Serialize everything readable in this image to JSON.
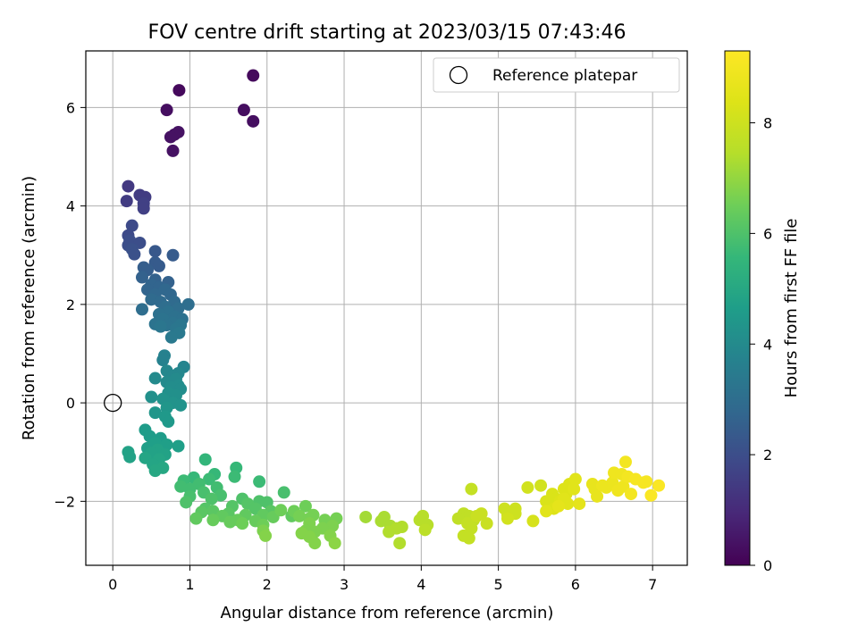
{
  "chart_data": {
    "type": "scatter",
    "title": "FOV centre drift starting at 2023/03/15 07:43:46",
    "xlabel": "Angular distance from reference (arcmin)",
    "ylabel": "Rotation from reference (arcmin)",
    "xlim": [
      -0.35,
      7.45
    ],
    "ylim": [
      -3.3,
      7.15
    ],
    "xticks": [
      0,
      1,
      2,
      3,
      4,
      5,
      6,
      7
    ],
    "yticks": [
      -2,
      0,
      2,
      4,
      6
    ],
    "grid": true,
    "legend": {
      "placement": "top-right",
      "entries": [
        "Reference platepar"
      ]
    },
    "reference_point": {
      "x": 0,
      "y": 0
    },
    "colorbar": {
      "label": "Hours from first FF file",
      "colormap": "viridis",
      "range": [
        0,
        9.3
      ],
      "ticks": [
        0,
        2,
        4,
        6,
        8
      ]
    },
    "points": [
      {
        "x": 0.86,
        "y": 6.35,
        "c": 0.2
      },
      {
        "x": 1.82,
        "y": 6.65,
        "c": 0.2
      },
      {
        "x": 0.7,
        "y": 5.95,
        "c": 0.3
      },
      {
        "x": 1.7,
        "y": 5.95,
        "c": 0.3
      },
      {
        "x": 1.82,
        "y": 5.72,
        "c": 0.3
      },
      {
        "x": 0.85,
        "y": 5.5,
        "c": 0.4
      },
      {
        "x": 0.8,
        "y": 5.45,
        "c": 0.4
      },
      {
        "x": 0.75,
        "y": 5.4,
        "c": 0.4
      },
      {
        "x": 0.78,
        "y": 5.12,
        "c": 0.4
      },
      {
        "x": 0.2,
        "y": 4.4,
        "c": 1.4
      },
      {
        "x": 0.35,
        "y": 4.22,
        "c": 1.5
      },
      {
        "x": 0.42,
        "y": 4.18,
        "c": 1.5
      },
      {
        "x": 0.18,
        "y": 4.1,
        "c": 1.5
      },
      {
        "x": 0.4,
        "y": 4.05,
        "c": 1.6
      },
      {
        "x": 0.4,
        "y": 3.95,
        "c": 1.6
      },
      {
        "x": 0.25,
        "y": 3.6,
        "c": 1.9
      },
      {
        "x": 0.2,
        "y": 3.4,
        "c": 1.9
      },
      {
        "x": 0.22,
        "y": 3.3,
        "c": 2.0
      },
      {
        "x": 0.35,
        "y": 3.25,
        "c": 2.0
      },
      {
        "x": 0.2,
        "y": 3.2,
        "c": 2.0
      },
      {
        "x": 0.25,
        "y": 3.12,
        "c": 2.1
      },
      {
        "x": 0.28,
        "y": 3.02,
        "c": 2.1
      },
      {
        "x": 0.55,
        "y": 3.08,
        "c": 2.3
      },
      {
        "x": 0.78,
        "y": 3.0,
        "c": 2.4
      },
      {
        "x": 0.55,
        "y": 2.85,
        "c": 2.4
      },
      {
        "x": 0.6,
        "y": 2.78,
        "c": 2.4
      },
      {
        "x": 0.4,
        "y": 2.75,
        "c": 2.5
      },
      {
        "x": 0.45,
        "y": 2.7,
        "c": 2.5
      },
      {
        "x": 0.38,
        "y": 2.55,
        "c": 2.6
      },
      {
        "x": 0.55,
        "y": 2.5,
        "c": 2.6
      },
      {
        "x": 0.72,
        "y": 2.45,
        "c": 2.6
      },
      {
        "x": 0.5,
        "y": 2.4,
        "c": 2.7
      },
      {
        "x": 0.6,
        "y": 2.35,
        "c": 2.7
      },
      {
        "x": 0.45,
        "y": 2.3,
        "c": 2.7
      },
      {
        "x": 0.68,
        "y": 2.3,
        "c": 2.8
      },
      {
        "x": 0.55,
        "y": 2.2,
        "c": 2.8
      },
      {
        "x": 0.75,
        "y": 2.2,
        "c": 2.8
      },
      {
        "x": 0.5,
        "y": 2.1,
        "c": 2.9
      },
      {
        "x": 0.62,
        "y": 2.05,
        "c": 2.9
      },
      {
        "x": 0.8,
        "y": 2.05,
        "c": 2.9
      },
      {
        "x": 0.98,
        "y": 2.0,
        "c": 3.0
      },
      {
        "x": 0.68,
        "y": 1.95,
        "c": 3.0
      },
      {
        "x": 0.85,
        "y": 1.92,
        "c": 3.0
      },
      {
        "x": 0.38,
        "y": 1.9,
        "c": 3.0
      },
      {
        "x": 0.72,
        "y": 1.85,
        "c": 3.1
      },
      {
        "x": 0.6,
        "y": 1.8,
        "c": 3.1
      },
      {
        "x": 0.8,
        "y": 1.75,
        "c": 3.1
      },
      {
        "x": 0.9,
        "y": 1.7,
        "c": 3.1
      },
      {
        "x": 0.65,
        "y": 1.7,
        "c": 3.2
      },
      {
        "x": 0.78,
        "y": 1.62,
        "c": 3.2
      },
      {
        "x": 0.55,
        "y": 1.6,
        "c": 3.2
      },
      {
        "x": 0.7,
        "y": 1.58,
        "c": 3.2
      },
      {
        "x": 0.88,
        "y": 1.58,
        "c": 3.3
      },
      {
        "x": 0.62,
        "y": 1.55,
        "c": 3.3
      },
      {
        "x": 0.82,
        "y": 1.5,
        "c": 3.3
      },
      {
        "x": 0.86,
        "y": 1.42,
        "c": 3.4
      },
      {
        "x": 0.76,
        "y": 1.33,
        "c": 3.4
      },
      {
        "x": 0.67,
        "y": 0.96,
        "c": 3.7
      },
      {
        "x": 0.65,
        "y": 0.87,
        "c": 3.7
      },
      {
        "x": 0.92,
        "y": 0.73,
        "c": 3.8
      },
      {
        "x": 0.7,
        "y": 0.65,
        "c": 3.9
      },
      {
        "x": 0.85,
        "y": 0.6,
        "c": 3.9
      },
      {
        "x": 0.78,
        "y": 0.55,
        "c": 3.9
      },
      {
        "x": 0.55,
        "y": 0.5,
        "c": 4.0
      },
      {
        "x": 0.82,
        "y": 0.48,
        "c": 4.0
      },
      {
        "x": 0.7,
        "y": 0.42,
        "c": 4.0
      },
      {
        "x": 0.85,
        "y": 0.35,
        "c": 4.1
      },
      {
        "x": 0.75,
        "y": 0.32,
        "c": 4.1
      },
      {
        "x": 0.88,
        "y": 0.28,
        "c": 4.1
      },
      {
        "x": 0.72,
        "y": 0.2,
        "c": 4.2
      },
      {
        "x": 0.82,
        "y": 0.15,
        "c": 4.2
      },
      {
        "x": 0.5,
        "y": 0.12,
        "c": 4.2
      },
      {
        "x": 0.65,
        "y": 0.08,
        "c": 4.3
      },
      {
        "x": 0.78,
        "y": 0.0,
        "c": 4.3
      },
      {
        "x": 0.88,
        "y": -0.05,
        "c": 4.3
      },
      {
        "x": 0.7,
        "y": -0.1,
        "c": 4.4
      },
      {
        "x": 0.55,
        "y": -0.2,
        "c": 4.4
      },
      {
        "x": 0.68,
        "y": -0.28,
        "c": 4.5
      },
      {
        "x": 0.72,
        "y": -0.38,
        "c": 4.5
      },
      {
        "x": 0.42,
        "y": -0.55,
        "c": 4.6
      },
      {
        "x": 0.48,
        "y": -0.68,
        "c": 4.6
      },
      {
        "x": 0.62,
        "y": -0.72,
        "c": 4.6
      },
      {
        "x": 0.55,
        "y": -0.82,
        "c": 4.7
      },
      {
        "x": 0.7,
        "y": -0.85,
        "c": 4.7
      },
      {
        "x": 0.85,
        "y": -0.88,
        "c": 4.7
      },
      {
        "x": 0.45,
        "y": -0.92,
        "c": 4.7
      },
      {
        "x": 0.58,
        "y": -0.95,
        "c": 4.8
      },
      {
        "x": 0.5,
        "y": -1.02,
        "c": 4.8
      },
      {
        "x": 0.68,
        "y": -1.05,
        "c": 4.8
      },
      {
        "x": 0.2,
        "y": -1.0,
        "c": 4.8
      },
      {
        "x": 0.22,
        "y": -1.1,
        "c": 4.8
      },
      {
        "x": 0.42,
        "y": -1.12,
        "c": 4.9
      },
      {
        "x": 0.6,
        "y": -1.15,
        "c": 4.9
      },
      {
        "x": 0.52,
        "y": -1.25,
        "c": 4.9
      },
      {
        "x": 0.65,
        "y": -1.32,
        "c": 5.0
      },
      {
        "x": 0.55,
        "y": -1.38,
        "c": 5.0
      },
      {
        "x": 1.2,
        "y": -1.15,
        "c": 5.5
      },
      {
        "x": 1.6,
        "y": -1.32,
        "c": 5.6
      },
      {
        "x": 1.32,
        "y": -1.45,
        "c": 5.6
      },
      {
        "x": 1.05,
        "y": -1.52,
        "c": 5.6
      },
      {
        "x": 0.92,
        "y": -1.58,
        "c": 5.7
      },
      {
        "x": 1.25,
        "y": -1.55,
        "c": 5.7
      },
      {
        "x": 1.58,
        "y": -1.5,
        "c": 5.7
      },
      {
        "x": 1.9,
        "y": -1.6,
        "c": 5.7
      },
      {
        "x": 1.12,
        "y": -1.65,
        "c": 5.8
      },
      {
        "x": 0.88,
        "y": -1.7,
        "c": 5.8
      },
      {
        "x": 1.0,
        "y": -1.75,
        "c": 5.8
      },
      {
        "x": 1.35,
        "y": -1.72,
        "c": 5.8
      },
      {
        "x": 1.18,
        "y": -1.82,
        "c": 5.9
      },
      {
        "x": 2.22,
        "y": -1.82,
        "c": 5.9
      },
      {
        "x": 1.0,
        "y": -1.9,
        "c": 5.9
      },
      {
        "x": 1.4,
        "y": -1.88,
        "c": 5.9
      },
      {
        "x": 1.28,
        "y": -1.95,
        "c": 6.0
      },
      {
        "x": 1.68,
        "y": -1.95,
        "c": 6.0
      },
      {
        "x": 0.95,
        "y": -2.02,
        "c": 6.0
      },
      {
        "x": 1.9,
        "y": -2.0,
        "c": 6.0
      },
      {
        "x": 2.0,
        "y": -2.02,
        "c": 6.0
      },
      {
        "x": 1.75,
        "y": -2.05,
        "c": 6.1
      },
      {
        "x": 1.55,
        "y": -2.1,
        "c": 6.1
      },
      {
        "x": 1.2,
        "y": -2.15,
        "c": 6.1
      },
      {
        "x": 1.85,
        "y": -2.15,
        "c": 6.1
      },
      {
        "x": 1.3,
        "y": -2.2,
        "c": 6.2
      },
      {
        "x": 1.15,
        "y": -2.22,
        "c": 6.2
      },
      {
        "x": 2.05,
        "y": -2.2,
        "c": 6.2
      },
      {
        "x": 1.5,
        "y": -2.25,
        "c": 6.2
      },
      {
        "x": 1.72,
        "y": -2.28,
        "c": 6.3
      },
      {
        "x": 1.42,
        "y": -2.3,
        "c": 6.3
      },
      {
        "x": 1.95,
        "y": -2.28,
        "c": 6.3
      },
      {
        "x": 2.32,
        "y": -2.3,
        "c": 6.3
      },
      {
        "x": 1.08,
        "y": -2.35,
        "c": 6.3
      },
      {
        "x": 1.3,
        "y": -2.38,
        "c": 6.4
      },
      {
        "x": 1.62,
        "y": -2.38,
        "c": 6.4
      },
      {
        "x": 1.85,
        "y": -2.4,
        "c": 6.4
      },
      {
        "x": 2.08,
        "y": -2.32,
        "c": 6.4
      },
      {
        "x": 1.52,
        "y": -2.42,
        "c": 6.4
      },
      {
        "x": 1.68,
        "y": -2.45,
        "c": 6.5
      },
      {
        "x": 1.95,
        "y": -2.48,
        "c": 6.5
      },
      {
        "x": 2.18,
        "y": -2.18,
        "c": 6.5
      },
      {
        "x": 2.35,
        "y": -2.2,
        "c": 6.5
      },
      {
        "x": 2.5,
        "y": -2.1,
        "c": 6.5
      },
      {
        "x": 2.6,
        "y": -2.28,
        "c": 6.6
      },
      {
        "x": 2.42,
        "y": -2.3,
        "c": 6.6
      },
      {
        "x": 2.55,
        "y": -2.35,
        "c": 6.6
      },
      {
        "x": 2.75,
        "y": -2.38,
        "c": 6.6
      },
      {
        "x": 2.9,
        "y": -2.35,
        "c": 6.6
      },
      {
        "x": 2.55,
        "y": -2.45,
        "c": 6.7
      },
      {
        "x": 2.85,
        "y": -2.5,
        "c": 6.7
      },
      {
        "x": 2.72,
        "y": -2.55,
        "c": 6.7
      },
      {
        "x": 2.5,
        "y": -2.6,
        "c": 6.7
      },
      {
        "x": 1.95,
        "y": -2.6,
        "c": 6.7
      },
      {
        "x": 2.62,
        "y": -2.62,
        "c": 6.7
      },
      {
        "x": 2.45,
        "y": -2.65,
        "c": 6.8
      },
      {
        "x": 2.82,
        "y": -2.7,
        "c": 6.8
      },
      {
        "x": 1.98,
        "y": -2.7,
        "c": 6.8
      },
      {
        "x": 2.55,
        "y": -2.72,
        "c": 6.8
      },
      {
        "x": 2.62,
        "y": -2.85,
        "c": 6.8
      },
      {
        "x": 2.88,
        "y": -2.85,
        "c": 6.9
      },
      {
        "x": 3.28,
        "y": -2.32,
        "c": 7.2
      },
      {
        "x": 3.52,
        "y": -2.32,
        "c": 7.3
      },
      {
        "x": 3.48,
        "y": -2.4,
        "c": 7.3
      },
      {
        "x": 3.6,
        "y": -2.5,
        "c": 7.3
      },
      {
        "x": 3.75,
        "y": -2.52,
        "c": 7.4
      },
      {
        "x": 3.68,
        "y": -2.55,
        "c": 7.4
      },
      {
        "x": 3.58,
        "y": -2.62,
        "c": 7.4
      },
      {
        "x": 3.72,
        "y": -2.85,
        "c": 7.4
      },
      {
        "x": 4.02,
        "y": -2.3,
        "c": 7.5
      },
      {
        "x": 3.98,
        "y": -2.38,
        "c": 7.5
      },
      {
        "x": 4.08,
        "y": -2.48,
        "c": 7.5
      },
      {
        "x": 4.05,
        "y": -2.58,
        "c": 7.6
      },
      {
        "x": 4.55,
        "y": -2.25,
        "c": 7.7
      },
      {
        "x": 4.62,
        "y": -2.3,
        "c": 7.7
      },
      {
        "x": 4.48,
        "y": -2.35,
        "c": 7.7
      },
      {
        "x": 4.68,
        "y": -2.38,
        "c": 7.7
      },
      {
        "x": 4.6,
        "y": -2.45,
        "c": 7.8
      },
      {
        "x": 4.65,
        "y": -2.55,
        "c": 7.8
      },
      {
        "x": 4.55,
        "y": -2.7,
        "c": 7.8
      },
      {
        "x": 4.62,
        "y": -2.75,
        "c": 7.8
      },
      {
        "x": 4.65,
        "y": -1.75,
        "c": 7.8
      },
      {
        "x": 4.78,
        "y": -2.25,
        "c": 7.9
      },
      {
        "x": 4.85,
        "y": -2.45,
        "c": 7.9
      },
      {
        "x": 4.72,
        "y": -2.3,
        "c": 7.9
      },
      {
        "x": 5.08,
        "y": -2.15,
        "c": 8.0
      },
      {
        "x": 5.22,
        "y": -2.15,
        "c": 8.0
      },
      {
        "x": 5.12,
        "y": -2.28,
        "c": 8.0
      },
      {
        "x": 5.22,
        "y": -2.25,
        "c": 8.0
      },
      {
        "x": 5.12,
        "y": -2.35,
        "c": 8.1
      },
      {
        "x": 5.38,
        "y": -1.72,
        "c": 8.1
      },
      {
        "x": 5.55,
        "y": -1.68,
        "c": 8.1
      },
      {
        "x": 5.45,
        "y": -2.4,
        "c": 8.2
      },
      {
        "x": 5.62,
        "y": -2.0,
        "c": 8.3
      },
      {
        "x": 5.7,
        "y": -1.85,
        "c": 8.3
      },
      {
        "x": 5.75,
        "y": -1.95,
        "c": 8.3
      },
      {
        "x": 5.68,
        "y": -2.05,
        "c": 8.3
      },
      {
        "x": 5.8,
        "y": -2.0,
        "c": 8.4
      },
      {
        "x": 5.85,
        "y": -1.75,
        "c": 8.4
      },
      {
        "x": 5.88,
        "y": -1.85,
        "c": 8.4
      },
      {
        "x": 5.92,
        "y": -1.65,
        "c": 8.4
      },
      {
        "x": 5.72,
        "y": -2.15,
        "c": 8.4
      },
      {
        "x": 5.62,
        "y": -2.2,
        "c": 8.5
      },
      {
        "x": 5.9,
        "y": -2.05,
        "c": 8.5
      },
      {
        "x": 6.0,
        "y": -1.55,
        "c": 8.5
      },
      {
        "x": 5.98,
        "y": -1.75,
        "c": 8.5
      },
      {
        "x": 5.85,
        "y": -1.95,
        "c": 8.5
      },
      {
        "x": 6.05,
        "y": -2.05,
        "c": 8.6
      },
      {
        "x": 5.78,
        "y": -2.1,
        "c": 8.6
      },
      {
        "x": 6.22,
        "y": -1.65,
        "c": 8.7
      },
      {
        "x": 6.25,
        "y": -1.75,
        "c": 8.7
      },
      {
        "x": 6.28,
        "y": -1.9,
        "c": 8.7
      },
      {
        "x": 6.35,
        "y": -1.68,
        "c": 8.8
      },
      {
        "x": 6.4,
        "y": -1.72,
        "c": 8.8
      },
      {
        "x": 6.48,
        "y": -1.62,
        "c": 8.8
      },
      {
        "x": 6.5,
        "y": -1.42,
        "c": 8.9
      },
      {
        "x": 6.55,
        "y": -1.78,
        "c": 8.9
      },
      {
        "x": 6.6,
        "y": -1.45,
        "c": 8.9
      },
      {
        "x": 6.62,
        "y": -1.7,
        "c": 8.9
      },
      {
        "x": 6.65,
        "y": -1.2,
        "c": 9.0
      },
      {
        "x": 6.68,
        "y": -1.5,
        "c": 9.0
      },
      {
        "x": 6.72,
        "y": -1.85,
        "c": 9.0
      },
      {
        "x": 6.78,
        "y": -1.55,
        "c": 9.1
      },
      {
        "x": 6.88,
        "y": -1.62,
        "c": 9.1
      },
      {
        "x": 6.92,
        "y": -1.6,
        "c": 9.1
      },
      {
        "x": 6.98,
        "y": -1.88,
        "c": 9.2
      },
      {
        "x": 7.08,
        "y": -1.68,
        "c": 9.2
      }
    ]
  }
}
